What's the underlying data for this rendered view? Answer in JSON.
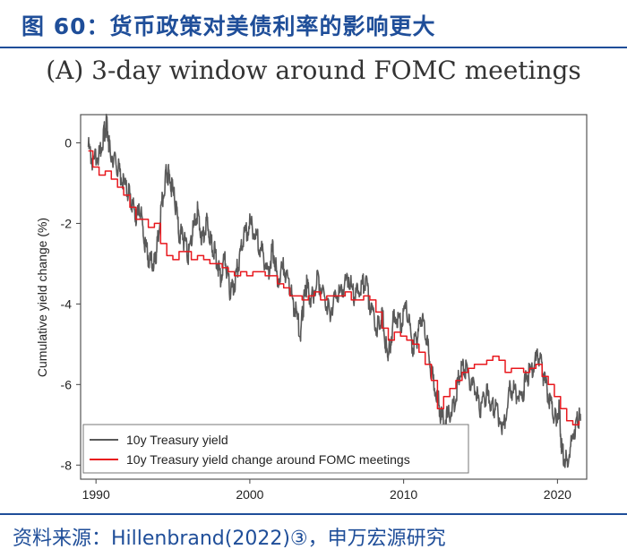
{
  "header": {
    "figure_title": "图 60：货币政策对美债利率的影响更大"
  },
  "footer": {
    "source": "资料来源：Hillenbrand(2022)③，申万宏源研究"
  },
  "colors": {
    "brand": "#1f4e99",
    "treasury": "#595959",
    "fomc": "#e8181e"
  },
  "chart_data": {
    "type": "line",
    "title": "(A) 3-day window around FOMC meetings",
    "xlabel": "",
    "ylabel": "Cumulative yield change (%)",
    "xlim": [
      1989.0,
      2021.9
    ],
    "ylim": [
      -8.35,
      0.7
    ],
    "xticks": [
      1990,
      2000,
      2010,
      2020
    ],
    "yticks": [
      0,
      -2,
      -4,
      -6,
      -8
    ],
    "xtick_labels": [
      "1990",
      "2000",
      "2010",
      "2020"
    ],
    "ytick_labels": [
      "0",
      "-2",
      "-4",
      "-6",
      "-8"
    ],
    "legend_position": "bottom-left",
    "series": [
      {
        "name": "10y Treasury yield",
        "color": "#595959",
        "x": [
          1989.5,
          1989.8,
          1990.2,
          1990.5,
          1990.7,
          1990.9,
          1991.3,
          1991.6,
          1992.0,
          1992.3,
          1992.6,
          1992.9,
          1993.2,
          1993.5,
          1993.8,
          1994.0,
          1994.3,
          1994.6,
          1994.8,
          1995.1,
          1995.4,
          1995.7,
          1996.0,
          1996.3,
          1996.6,
          1996.9,
          1997.2,
          1997.5,
          1997.8,
          1998.1,
          1998.4,
          1998.7,
          1999.0,
          1999.3,
          1999.6,
          2000.0,
          2000.4,
          2000.8,
          2001.2,
          2001.5,
          2001.8,
          2002.2,
          2002.6,
          2002.9,
          2003.3,
          2003.5,
          2003.7,
          2004.0,
          2004.4,
          2004.8,
          2005.2,
          2005.6,
          2006.0,
          2006.4,
          2006.8,
          2007.2,
          2007.5,
          2007.9,
          2008.3,
          2008.6,
          2008.9,
          2009.1,
          2009.4,
          2009.8,
          2010.2,
          2010.6,
          2010.9,
          2011.2,
          2011.5,
          2011.8,
          2012.2,
          2012.5,
          2012.9,
          2013.3,
          2013.6,
          2013.9,
          2014.3,
          2014.7,
          2015.0,
          2015.4,
          2015.7,
          2016.0,
          2016.5,
          2016.9,
          2017.3,
          2017.7,
          2018.0,
          2018.4,
          2018.8,
          2019.1,
          2019.5,
          2019.8,
          2020.1,
          2020.3,
          2020.6,
          2021.0,
          2021.3,
          2021.5
        ],
        "values": [
          -0.1,
          -0.5,
          -0.3,
          0.2,
          0.5,
          -0.2,
          -0.5,
          -0.8,
          -1.2,
          -1.4,
          -1.9,
          -1.7,
          -2.6,
          -2.9,
          -3.0,
          -2.5,
          -1.5,
          -0.7,
          -0.9,
          -1.4,
          -2.2,
          -2.4,
          -2.8,
          -2.2,
          -1.7,
          -2.4,
          -1.9,
          -2.5,
          -2.8,
          -3.3,
          -2.9,
          -3.7,
          -3.5,
          -2.9,
          -2.4,
          -2.0,
          -2.3,
          -2.7,
          -3.2,
          -2.6,
          -3.4,
          -3.1,
          -3.6,
          -4.1,
          -4.7,
          -4.0,
          -3.5,
          -3.9,
          -3.4,
          -3.7,
          -4.2,
          -3.8,
          -3.7,
          -3.3,
          -3.8,
          -3.7,
          -3.4,
          -4.2,
          -4.6,
          -4.2,
          -5.2,
          -5.1,
          -4.2,
          -4.5,
          -4.1,
          -5.1,
          -4.8,
          -4.3,
          -4.9,
          -5.7,
          -6.3,
          -6.9,
          -6.8,
          -6.5,
          -5.8,
          -5.5,
          -5.9,
          -6.2,
          -6.6,
          -6.2,
          -6.5,
          -6.6,
          -7.1,
          -6.1,
          -6.2,
          -6.3,
          -5.8,
          -5.6,
          -5.3,
          -5.8,
          -6.4,
          -6.9,
          -6.6,
          -7.7,
          -7.9,
          -7.3,
          -6.8,
          -6.9
        ]
      },
      {
        "name": "10y Treasury yield change around FOMC meetings",
        "color": "#e8181e",
        "x": [
          1989.5,
          1989.8,
          1990.2,
          1990.6,
          1991.0,
          1991.4,
          1991.8,
          1992.2,
          1992.6,
          1993.0,
          1993.4,
          1993.8,
          1994.2,
          1994.6,
          1995.0,
          1995.4,
          1995.8,
          1996.2,
          1996.6,
          1997.0,
          1997.4,
          1997.8,
          1998.2,
          1998.6,
          1999.0,
          1999.4,
          1999.8,
          2000.2,
          2000.6,
          2001.0,
          2001.4,
          2001.8,
          2002.2,
          2002.6,
          2003.0,
          2003.4,
          2003.8,
          2004.2,
          2004.6,
          2005.0,
          2005.4,
          2005.8,
          2006.2,
          2006.6,
          2007.0,
          2007.4,
          2007.8,
          2008.2,
          2008.6,
          2009.0,
          2009.4,
          2009.8,
          2010.2,
          2010.6,
          2011.0,
          2011.4,
          2011.8,
          2012.2,
          2012.6,
          2013.0,
          2013.4,
          2013.8,
          2014.2,
          2014.6,
          2015.0,
          2015.4,
          2015.8,
          2016.2,
          2016.6,
          2017.0,
          2017.4,
          2017.8,
          2018.2,
          2018.6,
          2019.0,
          2019.4,
          2019.8,
          2020.2,
          2020.6,
          2021.0,
          2021.4
        ],
        "values": [
          -0.2,
          -0.6,
          -0.8,
          -0.7,
          -0.9,
          -1.1,
          -1.3,
          -1.6,
          -1.9,
          -1.9,
          -2.1,
          -2.0,
          -2.5,
          -2.8,
          -2.9,
          -2.7,
          -2.7,
          -2.9,
          -2.8,
          -2.9,
          -3.0,
          -3.0,
          -3.1,
          -3.2,
          -3.3,
          -3.2,
          -3.3,
          -3.2,
          -3.2,
          -3.3,
          -3.3,
          -3.5,
          -3.6,
          -3.8,
          -3.8,
          -3.9,
          -3.8,
          -3.7,
          -3.9,
          -3.8,
          -3.8,
          -3.8,
          -3.7,
          -3.9,
          -3.9,
          -3.8,
          -3.9,
          -4.2,
          -4.6,
          -4.9,
          -4.7,
          -4.8,
          -4.9,
          -5.0,
          -5.2,
          -5.5,
          -5.9,
          -6.6,
          -6.3,
          -6.1,
          -5.9,
          -5.7,
          -5.6,
          -5.5,
          -5.5,
          -5.4,
          -5.3,
          -5.4,
          -5.7,
          -5.6,
          -5.6,
          -5.7,
          -5.6,
          -5.5,
          -5.8,
          -6.0,
          -6.3,
          -6.6,
          -6.9,
          -7.0,
          -6.9
        ]
      }
    ]
  }
}
